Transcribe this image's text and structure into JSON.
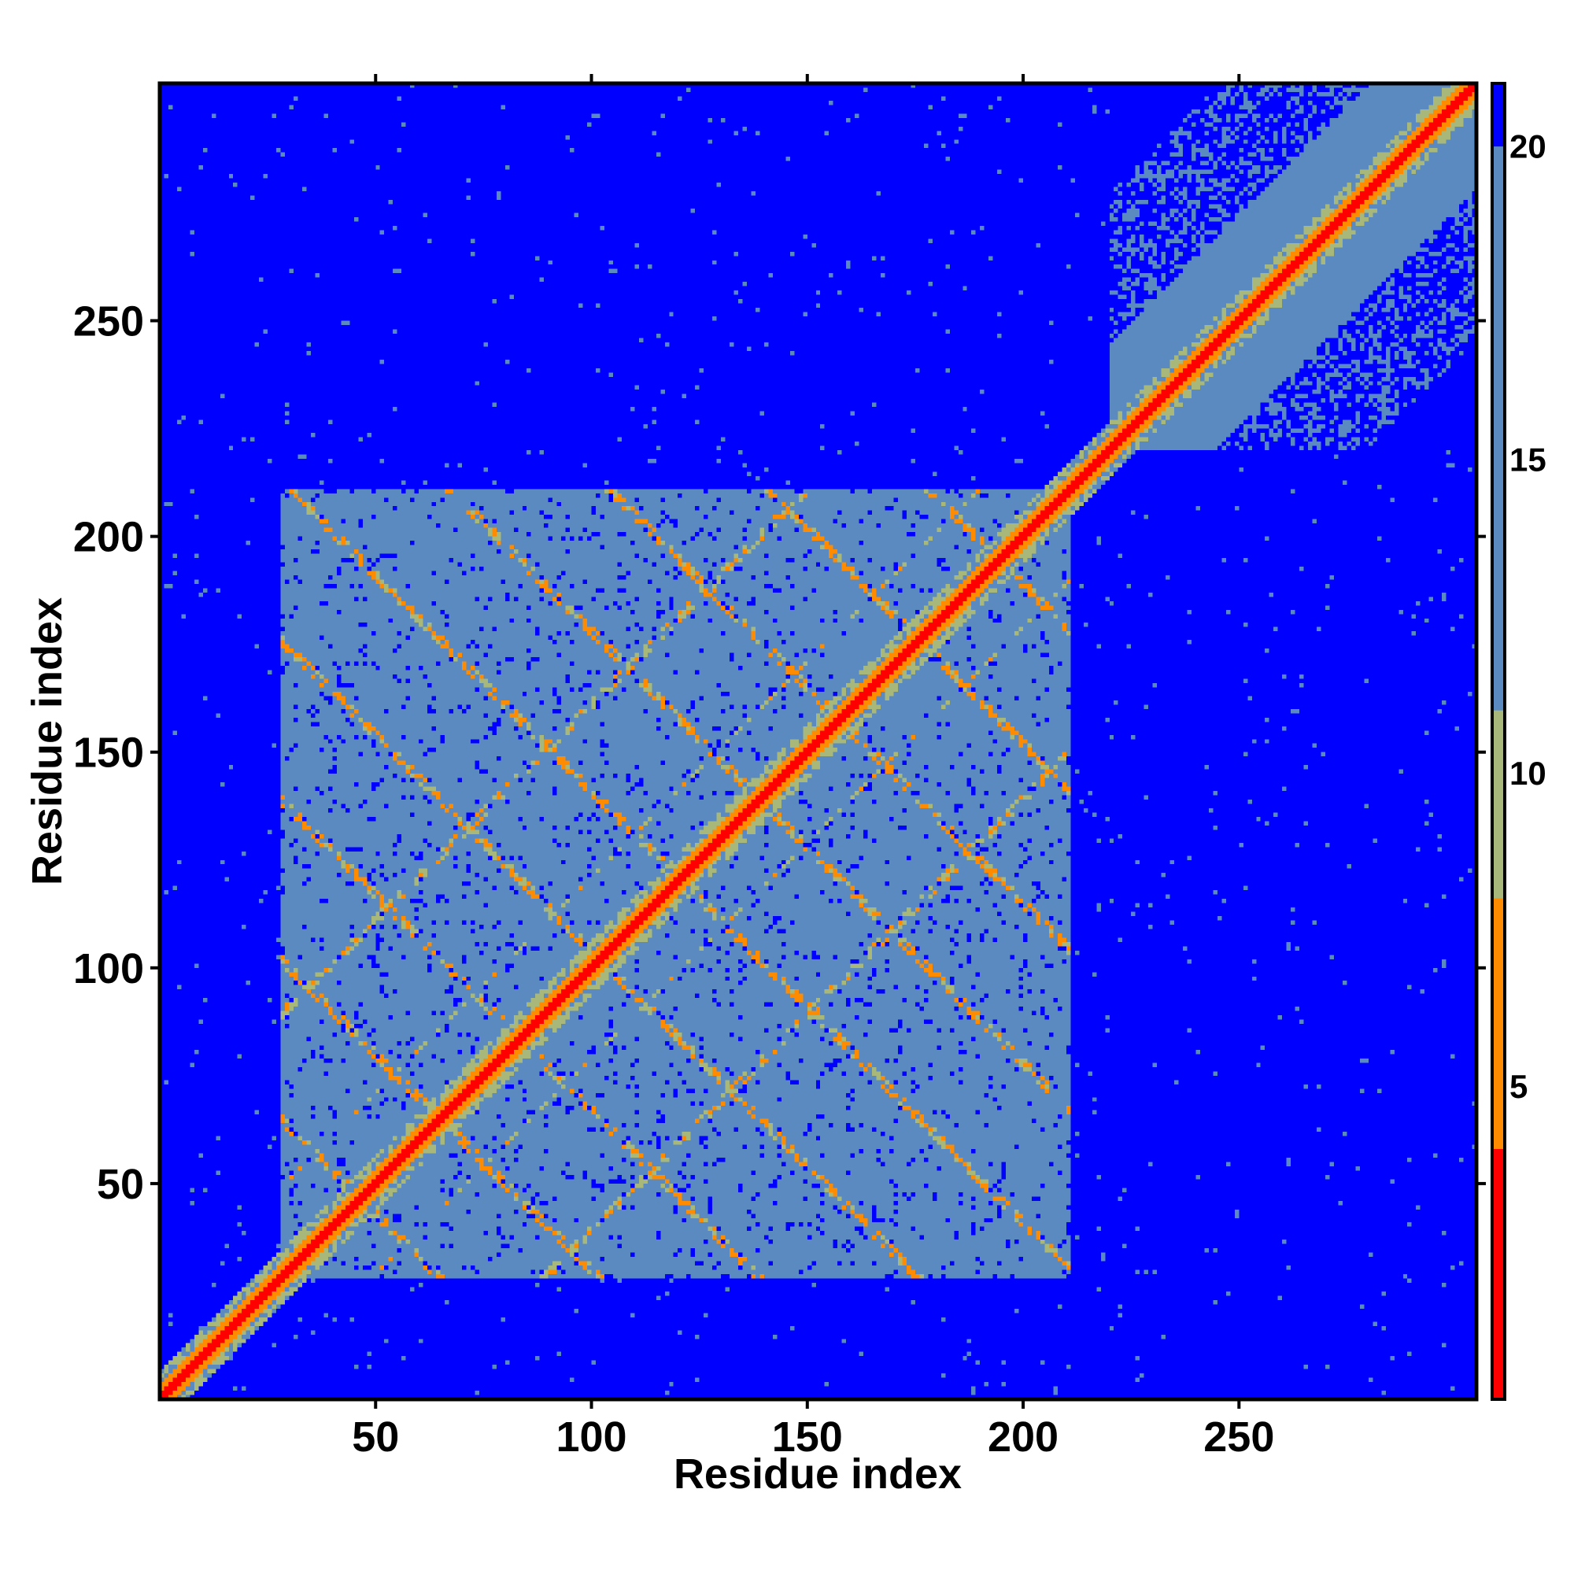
{
  "chart_data": {
    "type": "heatmap",
    "title": "",
    "xlabel": "Residue index",
    "ylabel": "Residue index",
    "xlim": [
      0,
      305
    ],
    "ylim": [
      0,
      305
    ],
    "x_ticks": [
      50,
      100,
      150,
      200,
      250
    ],
    "y_ticks": [
      50,
      100,
      150,
      200,
      250
    ],
    "colorbar": {
      "ticks": [
        5,
        10,
        15,
        20
      ],
      "range": [
        0,
        21
      ],
      "colors": {
        "low": "#ff0000",
        "mid_low": "#ff8c00",
        "mid": "#a8b87a",
        "high_mid": "#5a8ac0",
        "high": "#0000ff"
      }
    },
    "matrix_size": 305,
    "domains": [
      {
        "start": 28,
        "end": 210,
        "label": ""
      },
      {
        "start": 220,
        "end": 305,
        "label": ""
      }
    ],
    "grid": false,
    "legend": "colorbar-right"
  }
}
